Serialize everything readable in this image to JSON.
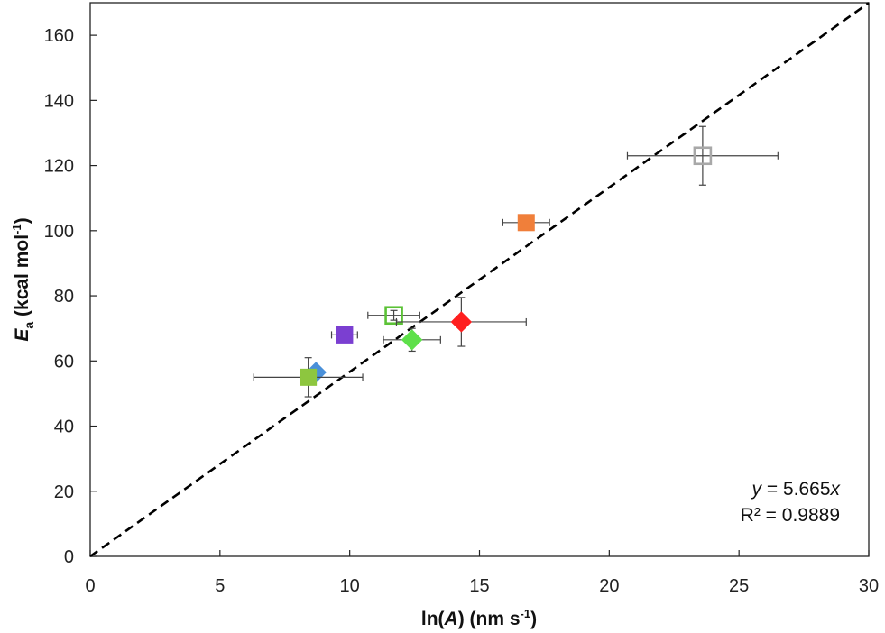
{
  "chart_data": {
    "type": "scatter",
    "x_axis": {
      "label_parts": [
        "ln(",
        "A",
        ") (nm s",
        "-1",
        ")"
      ],
      "min": 0,
      "max": 30,
      "ticks": [
        0,
        5,
        10,
        15,
        20,
        25,
        30
      ]
    },
    "y_axis": {
      "label_parts": [
        "E",
        "a",
        " (kcal mol",
        "-1",
        ")"
      ],
      "min": 0,
      "max": 170,
      "ticks": [
        0,
        20,
        40,
        60,
        80,
        100,
        120,
        140,
        160
      ]
    },
    "grid": false,
    "legend": "none",
    "points": [
      {
        "x": 8.7,
        "y": 56.5,
        "marker": "diamond",
        "fill": "#4a90d9",
        "stroke": "#4a90d9",
        "xerr": 0,
        "yerr": 0
      },
      {
        "x": 8.4,
        "y": 55,
        "marker": "square",
        "fill": "#8dc63f",
        "stroke": "#8dc63f",
        "xerr": 2.1,
        "yerr": 6
      },
      {
        "x": 9.8,
        "y": 68,
        "marker": "square",
        "fill": "#7b3fd1",
        "stroke": "#7b3fd1",
        "xerr": 0.5,
        "yerr": 0
      },
      {
        "x": 11.7,
        "y": 74,
        "marker": "square",
        "fill": "none",
        "stroke": "#5bc236",
        "xerr": 1.0,
        "yerr": 1.5
      },
      {
        "x": 12.4,
        "y": 66.5,
        "marker": "diamond",
        "fill": "#5ee04a",
        "stroke": "#5ee04a",
        "xerr": 1.1,
        "yerr": 3.5
      },
      {
        "x": 14.3,
        "y": 72,
        "marker": "diamond",
        "fill": "#ff1f1f",
        "stroke": "#ff1f1f",
        "xerr": 2.5,
        "yerr": 7.5
      },
      {
        "x": 16.8,
        "y": 102.5,
        "marker": "square",
        "fill": "#f07f3a",
        "stroke": "#f07f3a",
        "xerr": 0.9,
        "yerr": 1.8
      },
      {
        "x": 23.6,
        "y": 123,
        "marker": "square",
        "fill": "none",
        "stroke": "#a8a8a8",
        "xerr": 2.9,
        "yerr": 9
      }
    ],
    "trendline": {
      "style": "dashed",
      "color": "#000000",
      "slope": 5.665,
      "equation_parts": [
        "y",
        " = 5.665",
        "x"
      ],
      "r_squared_label": "R² = 0.9889"
    }
  }
}
